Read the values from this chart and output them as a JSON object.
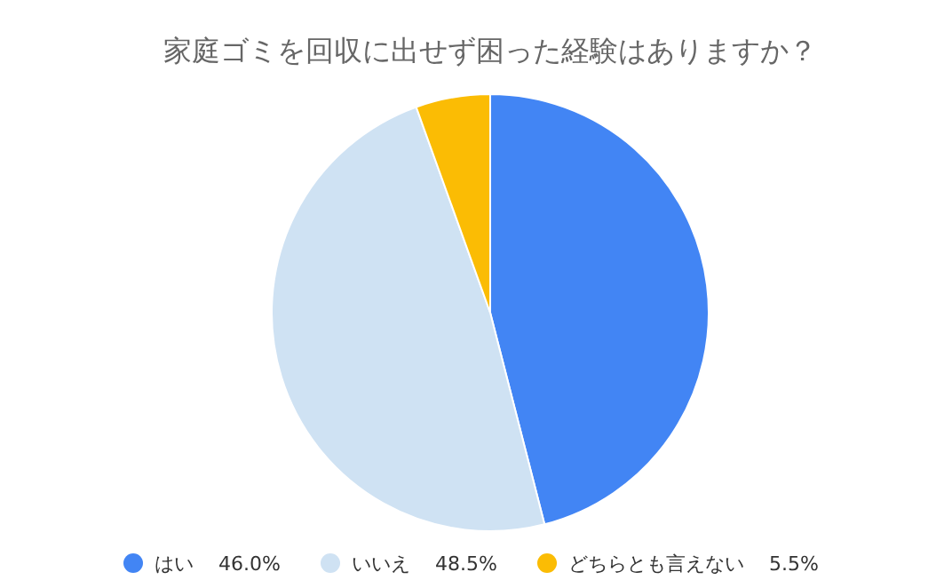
{
  "chart_data": {
    "type": "pie",
    "title": "家庭ゴミを回収に出せず困った経験はありますか？",
    "categories": [
      "はい",
      "いいえ",
      "どちらとも言えない"
    ],
    "values": [
      46.0,
      48.5,
      5.5
    ],
    "value_labels": [
      "46.0%",
      "48.5%",
      "5.5%"
    ],
    "colors": [
      "#4285f4",
      "#cfe2f3",
      "#fbbc04"
    ],
    "legend": "bottom"
  }
}
